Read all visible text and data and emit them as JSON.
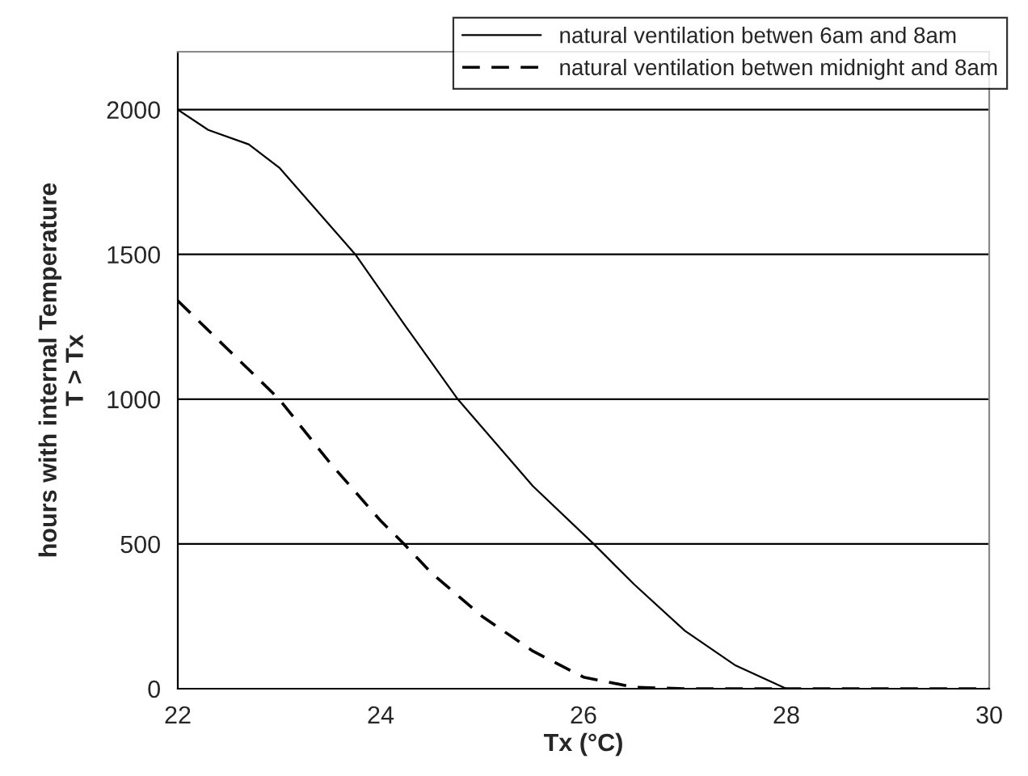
{
  "chart_data": {
    "type": "line",
    "xlabel": "Tx (°C)",
    "ylabel": "hours with internal Temperature\nT > Tx",
    "xlim": [
      22,
      30
    ],
    "xticks": [
      22,
      24,
      26,
      28,
      30
    ],
    "ylim": [
      0,
      2200
    ],
    "yticks": [
      0,
      500,
      1000,
      1500,
      2000
    ],
    "grid": "y",
    "legend": "top right",
    "marker": "none",
    "series": [
      {
        "name": "natural ventilation betwen 6am and 8am",
        "color": "#000000",
        "line_style": "solid",
        "x": [
          22,
          22.3,
          22.7,
          23,
          23.3,
          23.75,
          24.25,
          24.76,
          25.5,
          26.1,
          26.5,
          27,
          27.5,
          28,
          30
        ],
        "values": [
          2000,
          1930,
          1880,
          1800,
          1680,
          1500,
          1250,
          1000,
          700,
          500,
          360,
          200,
          80,
          0,
          0
        ]
      },
      {
        "name": "natural ventilation betwen midnight and 8am",
        "color": "#000000",
        "line_style": "dashed",
        "x": [
          22,
          22.5,
          23,
          23.5,
          24,
          24.23,
          24.5,
          25,
          25.5,
          26,
          26.5,
          27,
          30
        ],
        "values": [
          1340,
          1170,
          1000,
          780,
          580,
          500,
          400,
          250,
          130,
          40,
          5,
          0,
          0
        ]
      }
    ]
  }
}
